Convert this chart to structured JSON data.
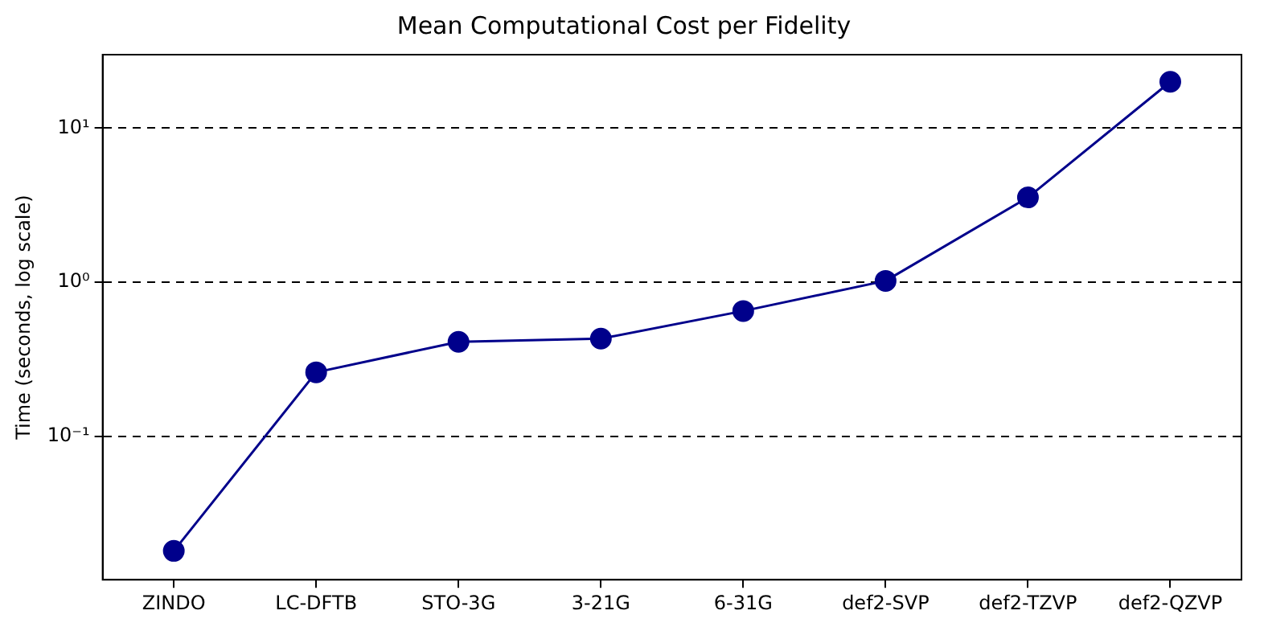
{
  "chart_data": {
    "type": "line",
    "title": "Mean Computational Cost per Fidelity",
    "ylabel": "Time (seconds, log scale)",
    "categories": [
      "ZINDO",
      "LC-DFTB",
      "STO-3G",
      "3-21G",
      "6-31G",
      "def2-SVP",
      "def2-TZVP",
      "def2-QZVP"
    ],
    "series": [
      {
        "color": "#00008b",
        "values": [
          0.018,
          0.26,
          0.41,
          0.43,
          0.65,
          1.02,
          3.55,
          20
        ]
      }
    ],
    "log": true,
    "ylim": [
      0.0117,
      30
    ],
    "yticks": [
      {
        "value": 0.1,
        "label": "10⁻¹"
      },
      {
        "value": 1,
        "label": "10⁰"
      },
      {
        "value": 10,
        "label": "10¹"
      }
    ],
    "grid": "y",
    "legend": false,
    "marker": "circle",
    "line_style": "solid"
  }
}
